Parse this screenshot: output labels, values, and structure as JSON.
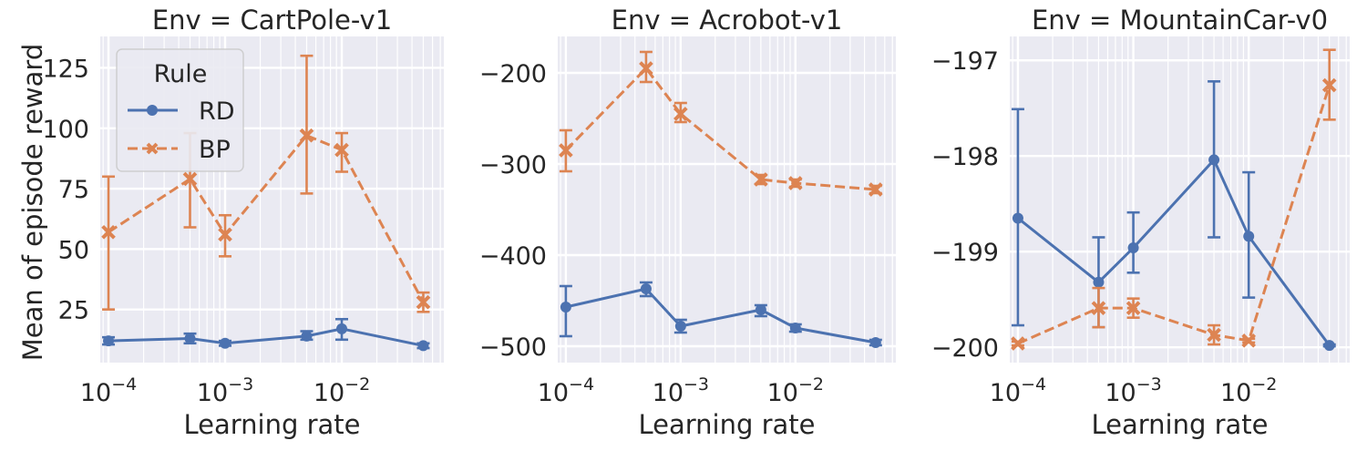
{
  "figure": {
    "ylabel": "Mean of episode reward",
    "xlabel": "Learning rate"
  },
  "legend": {
    "title": "Rule",
    "entries": [
      {
        "label": "RD",
        "series": "RD"
      },
      {
        "label": "BP",
        "series": "BP"
      }
    ]
  },
  "colors": {
    "RD": "#4c72b0",
    "BP": "#dd8452",
    "panel_bg": "#eaeaf2",
    "grid": "#ffffff"
  },
  "tick_labels": {
    "x": [
      {
        "exp": "−4",
        "value": 0.0001
      },
      {
        "exp": "−3",
        "value": 0.001
      },
      {
        "exp": "−2",
        "value": 0.01
      }
    ]
  },
  "chart_data": [
    {
      "type": "line",
      "title": "Env = CartPole-v1",
      "xlabel": "Learning rate",
      "ylabel": "Mean of episode reward",
      "xscale": "log",
      "xlim": [
        8.5e-05,
        0.075
      ],
      "ylim": [
        3,
        138
      ],
      "yticks": [
        25,
        50,
        75,
        100,
        125
      ],
      "ytick_labels": [
        "25",
        "50",
        "75",
        "100",
        "125"
      ],
      "grid": true,
      "legend": "upper-left",
      "x": [
        0.0001,
        0.0005,
        0.001,
        0.005,
        0.01,
        0.05
      ],
      "series": [
        {
          "name": "RD",
          "marker": "circle",
          "dash": "solid",
          "values": [
            12,
            13,
            11,
            14,
            17,
            10
          ],
          "err_low": [
            10.5,
            11,
            10,
            12.5,
            12.5,
            9
          ],
          "err_high": [
            13.5,
            15,
            12,
            16,
            21,
            11
          ]
        },
        {
          "name": "BP",
          "marker": "x",
          "dash": "dashed",
          "values": [
            57,
            79,
            56,
            97,
            91,
            28
          ],
          "err_low": [
            25,
            59,
            47,
            73,
            82,
            24
          ],
          "err_high": [
            80,
            98,
            64,
            130,
            98,
            32
          ]
        }
      ]
    },
    {
      "type": "line",
      "title": "Env = Acrobot-v1",
      "xlabel": "Learning rate",
      "ylabel": "",
      "xscale": "log",
      "xlim": [
        8.5e-05,
        0.075
      ],
      "ylim": [
        -518,
        -160
      ],
      "yticks": [
        -500,
        -400,
        -300,
        -200
      ],
      "ytick_labels": [
        "−500",
        "−400",
        "−300",
        "−200"
      ],
      "grid": true,
      "x": [
        0.0001,
        0.0005,
        0.001,
        0.005,
        0.01,
        0.05
      ],
      "series": [
        {
          "name": "RD",
          "marker": "circle",
          "dash": "solid",
          "values": [
            -457,
            -437,
            -478,
            -460,
            -480,
            -496
          ],
          "err_low": [
            -489,
            -445,
            -485,
            -467,
            -484,
            -499
          ],
          "err_high": [
            -434,
            -430,
            -471,
            -455,
            -476,
            -493
          ]
        },
        {
          "name": "BP",
          "marker": "x",
          "dash": "dashed",
          "values": [
            -285,
            -195,
            -245,
            -317,
            -321,
            -328
          ],
          "err_low": [
            -308,
            -210,
            -254,
            -322,
            -325,
            -332
          ],
          "err_high": [
            -263,
            -177,
            -233,
            -312,
            -317,
            -324
          ]
        }
      ]
    },
    {
      "type": "line",
      "title": "Env = MountainCar-v0",
      "xlabel": "Learning rate",
      "ylabel": "",
      "xscale": "log",
      "xlim": [
        8.5e-05,
        0.075
      ],
      "ylim": [
        -200.16,
        -196.75
      ],
      "yticks": [
        -200,
        -199,
        -198,
        -197
      ],
      "ytick_labels": [
        "−200",
        "−199",
        "−198",
        "−197"
      ],
      "grid": true,
      "x": [
        0.0001,
        0.0005,
        0.001,
        0.005,
        0.01,
        0.05
      ],
      "series": [
        {
          "name": "RD",
          "marker": "circle",
          "dash": "solid",
          "values": [
            -198.65,
            -199.32,
            -198.96,
            -198.04,
            -198.84,
            -199.98
          ],
          "err_low": [
            -199.77,
            -199.79,
            -199.22,
            -198.85,
            -199.48,
            -199.99
          ],
          "err_high": [
            -197.51,
            -198.85,
            -198.59,
            -197.22,
            -198.17,
            -199.97
          ]
        },
        {
          "name": "BP",
          "marker": "x",
          "dash": "dashed",
          "values": [
            -199.96,
            -199.59,
            -199.59,
            -199.87,
            -199.93,
            -197.26
          ],
          "err_low": [
            -199.98,
            -199.79,
            -199.69,
            -199.97,
            -199.95,
            -197.62
          ],
          "err_high": [
            -199.94,
            -199.38,
            -199.49,
            -199.77,
            -199.91,
            -196.89
          ]
        }
      ]
    }
  ]
}
